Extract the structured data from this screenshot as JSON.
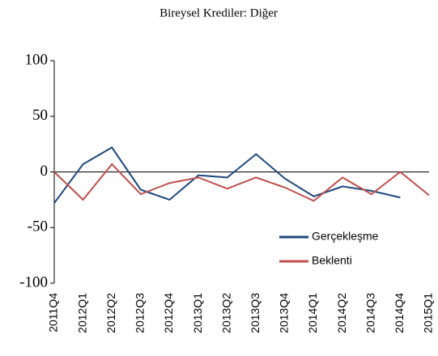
{
  "chart_data": {
    "type": "line",
    "title": "Bireysel Krediler: Diğer",
    "categories": [
      "2011Q4",
      "2012Q1",
      "2012Q2",
      "2012Q3",
      "2012Q4",
      "2013Q1",
      "2013Q2",
      "2013Q3",
      "2013Q4",
      "2014Q1",
      "2014Q2",
      "2014Q3",
      "2014Q4",
      "2015Q1"
    ],
    "series": [
      {
        "name": "Gerçekleşme",
        "color": "#1f497d",
        "values": [
          -28,
          7,
          22,
          -16,
          -25,
          -3,
          -5,
          16,
          -6,
          -22,
          -13,
          -17,
          -23,
          null
        ]
      },
      {
        "name": "Beklenti",
        "color": "#c0504d",
        "values": [
          0,
          -25,
          7,
          -20,
          -10,
          -5,
          -15,
          -5,
          -14,
          -26,
          -5,
          -20,
          0,
          -21
        ]
      }
    ],
    "ylim": [
      -100,
      100
    ],
    "yticks": [
      -100,
      -50,
      0,
      50,
      100
    ],
    "legend": "lower right"
  }
}
